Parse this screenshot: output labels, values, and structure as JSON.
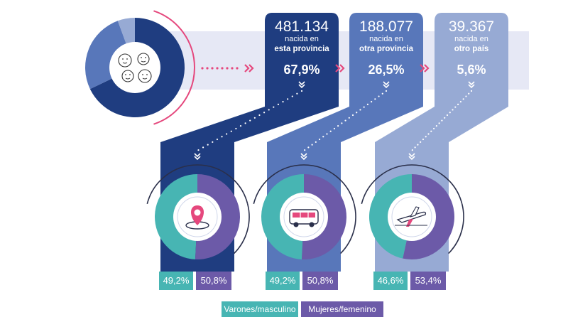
{
  "colors": {
    "dark": "#1f3d80",
    "mid": "#5877ba",
    "light": "#97aad4",
    "pale_band": "#e6e8f5",
    "teal": "#47b5b3",
    "violet": "#6c5aa8",
    "pink": "#e5487d",
    "white": "#ffffff"
  },
  "chart_data": {
    "type": "pie",
    "total_pie": {
      "slices": [
        {
          "key": "esta_provincia",
          "value": 67.9
        },
        {
          "key": "otra_provincia",
          "value": 26.5
        },
        {
          "key": "otro_pais",
          "value": 5.6
        }
      ],
      "icon": "faces-icon"
    },
    "origins": [
      {
        "count": "481.134",
        "line1": "nacida en",
        "line2": "esta provincia",
        "pct_label": "67,9%",
        "value": 67.9,
        "icon": "map-pin-icon",
        "sex_split": {
          "varones": 49.2,
          "mujeres": 50.8
        },
        "varones_label": "49,2%",
        "mujeres_label": "50,8%"
      },
      {
        "count": "188.077",
        "line1": "nacida en",
        "line2": "otra provincia",
        "pct_label": "26,5%",
        "value": 26.5,
        "icon": "bus-icon",
        "sex_split": {
          "varones": 49.2,
          "mujeres": 50.8
        },
        "varones_label": "49,2%",
        "mujeres_label": "50,8%"
      },
      {
        "count": "39.367",
        "line1": "nacida en",
        "line2": "otro país",
        "pct_label": "5,6%",
        "value": 5.6,
        "icon": "airplane-icon",
        "sex_split": {
          "varones": 46.6,
          "mujeres": 53.4
        },
        "varones_label": "46,6%",
        "mujeres_label": "53,4%"
      }
    ],
    "legend": [
      {
        "label": "Varones/masculino",
        "color_key": "teal"
      },
      {
        "label": "Mujeres/femenino",
        "color_key": "violet"
      }
    ]
  }
}
